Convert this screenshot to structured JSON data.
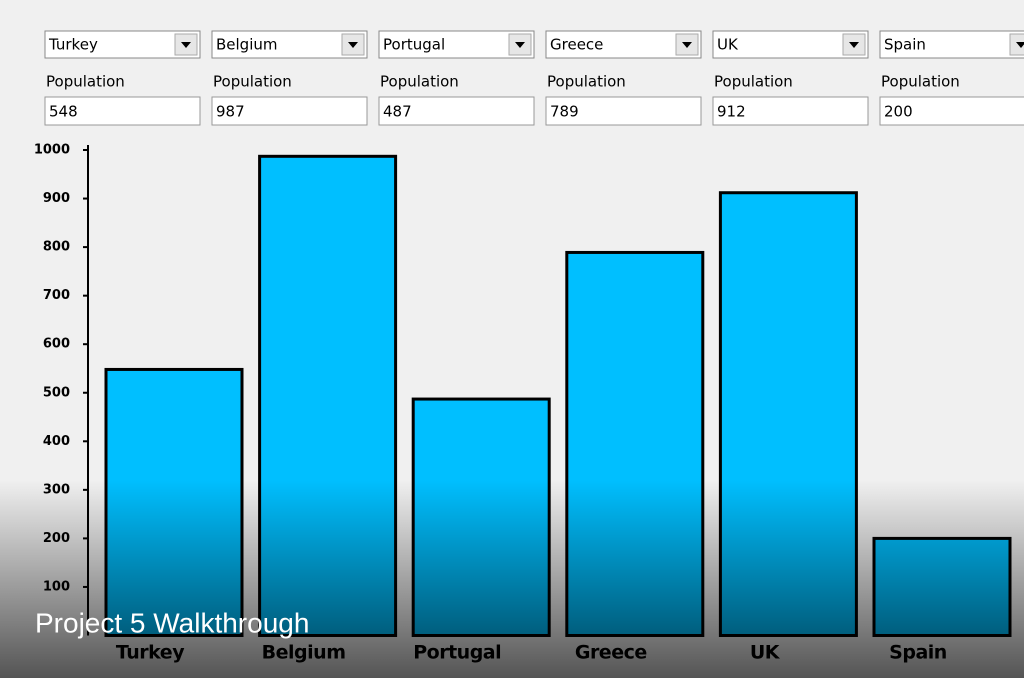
{
  "form": {
    "field_labels": [
      "Population",
      "Population",
      "Population",
      "Population",
      "Population",
      "Population"
    ]
  },
  "caption": "Project 5 Walkthrough",
  "chart_data": {
    "type": "bar",
    "categories": [
      "Turkey",
      "Belgium",
      "Portugal",
      "Greece",
      "UK",
      "Spain"
    ],
    "values": [
      548,
      987,
      487,
      789,
      912,
      200
    ],
    "color": "#00bfff",
    "ylim": [
      0,
      1000
    ],
    "yticks": [
      100,
      200,
      300,
      400,
      500,
      600,
      700,
      800,
      900,
      1000
    ]
  }
}
